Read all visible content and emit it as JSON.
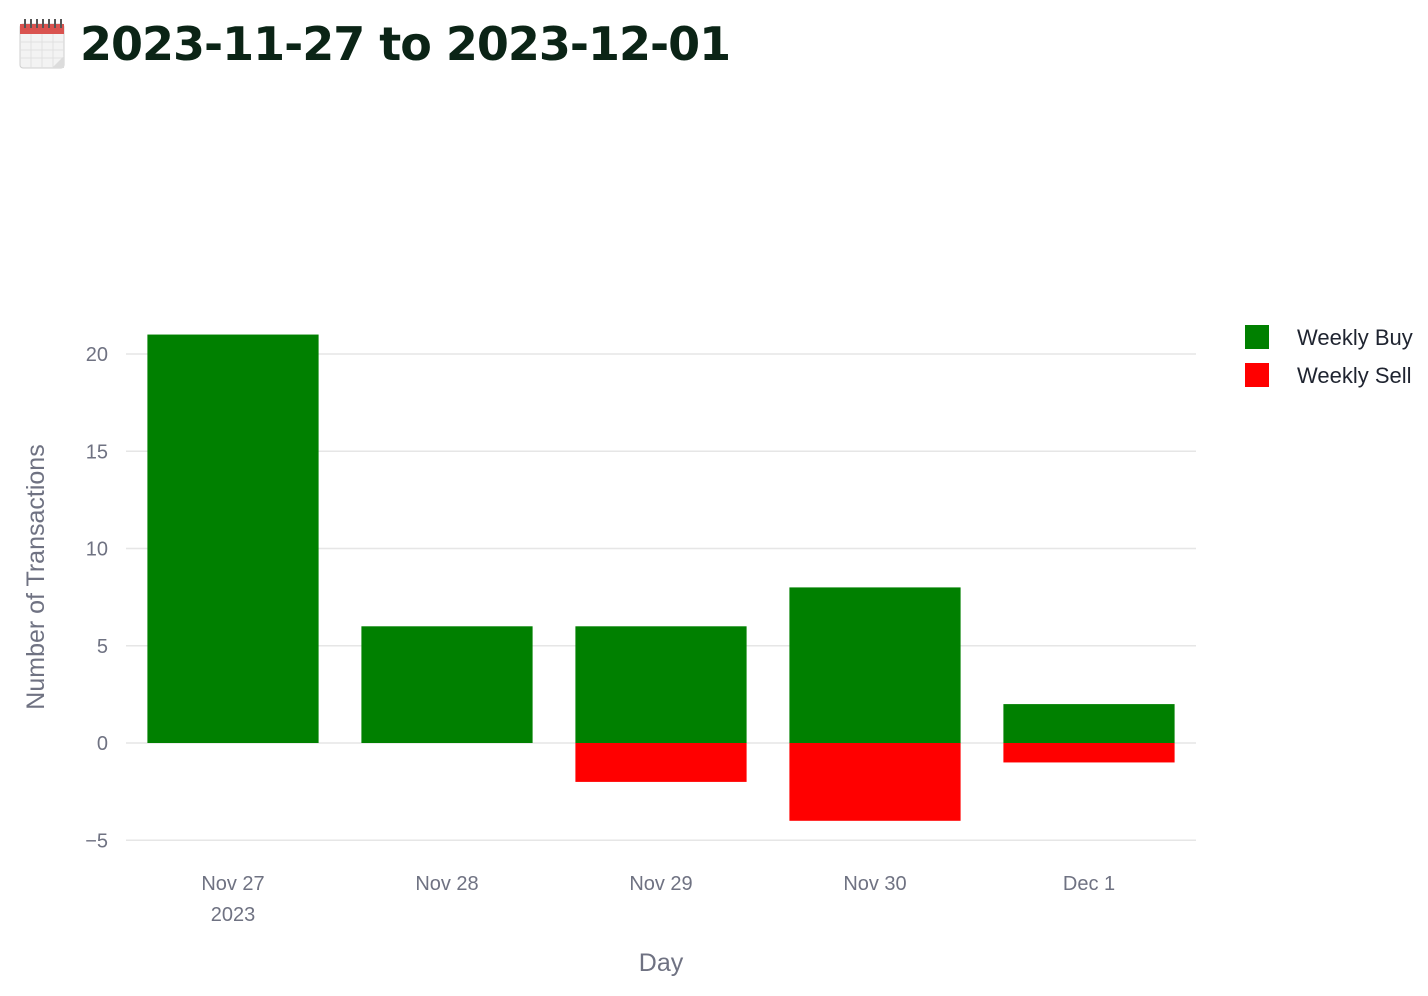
{
  "header": {
    "title": "2023-11-27 to 2023-12-01",
    "icon": "calendar-icon"
  },
  "chart_data": {
    "type": "bar",
    "barmode": "relative",
    "categories": [
      "Nov 27",
      "Nov 28",
      "Nov 29",
      "Nov 30",
      "Dec 1"
    ],
    "x_ticks": [
      {
        "label": "Nov 27",
        "sublabel": "2023"
      },
      {
        "label": "Nov 28",
        "sublabel": ""
      },
      {
        "label": "Nov 29",
        "sublabel": ""
      },
      {
        "label": "Nov 30",
        "sublabel": ""
      },
      {
        "label": "Dec 1",
        "sublabel": ""
      }
    ],
    "series": [
      {
        "name": "Weekly Buy",
        "color": "#008000",
        "values": [
          21,
          6,
          6,
          8,
          2
        ]
      },
      {
        "name": "Weekly Sell",
        "color": "#ff0000",
        "values": [
          0,
          0,
          -2,
          -4,
          -1
        ]
      }
    ],
    "xlabel": "Day",
    "ylabel": "Number of Transactions",
    "ylim": [
      -5.5,
      22
    ],
    "y_ticks": [
      -5,
      0,
      5,
      10,
      15,
      20
    ],
    "y_tick_labels": [
      "−5",
      "0",
      "5",
      "10",
      "15",
      "20"
    ],
    "grid": true,
    "legend_position": "top-right"
  }
}
